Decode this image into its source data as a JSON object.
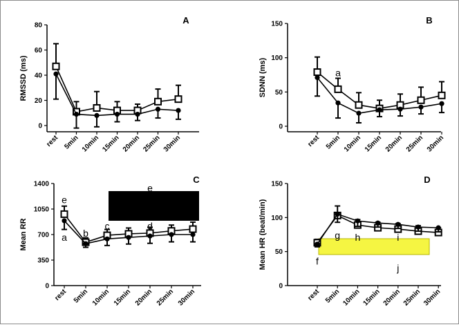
{
  "chart_data": [
    {
      "type": "line",
      "panel_label": "A",
      "ylabel": "RMSSD (ms)",
      "categories": [
        "rest",
        "5min",
        "10min",
        "15min",
        "20min",
        "25min",
        "30min"
      ],
      "ylim": [
        0,
        80
      ],
      "yticks": [
        0,
        20,
        40,
        60,
        80
      ],
      "series": [
        {
          "marker": "open-square",
          "values": [
            47,
            11,
            14,
            12,
            12,
            19,
            21
          ],
          "error": [
            18,
            8,
            13,
            7,
            5,
            10,
            11
          ]
        },
        {
          "marker": "filled-circle",
          "values": [
            41,
            9,
            8,
            9,
            9,
            13,
            12
          ],
          "error": [
            20,
            11,
            9,
            6,
            5,
            7,
            7
          ]
        }
      ],
      "annotations": []
    },
    {
      "type": "line",
      "panel_label": "B",
      "ylabel": "SDNN (ms)",
      "categories": [
        "rest",
        "5min",
        "10min",
        "15min",
        "20min",
        "25min",
        "30min"
      ],
      "ylim": [
        0,
        150
      ],
      "yticks": [
        0,
        50,
        100,
        150
      ],
      "series": [
        {
          "marker": "open-square",
          "values": [
            79,
            54,
            31,
            26,
            31,
            38,
            45
          ],
          "error": [
            22,
            16,
            18,
            12,
            16,
            19,
            20
          ]
        },
        {
          "marker": "filled-circle",
          "values": [
            71,
            34,
            19,
            24,
            25,
            28,
            33
          ],
          "error": [
            27,
            22,
            14,
            10,
            10,
            10,
            13
          ]
        }
      ],
      "annotations": [
        {
          "text": "a",
          "x": "5min",
          "y": 78
        }
      ]
    },
    {
      "type": "line",
      "panel_label": "C",
      "ylabel": "Mean RR",
      "categories": [
        "rest",
        "5min",
        "10min",
        "15min",
        "20min",
        "25min",
        "30min"
      ],
      "ylim": [
        0,
        1400
      ],
      "yticks": [
        0,
        350,
        700,
        1050,
        1400
      ],
      "series": [
        {
          "marker": "open-square",
          "values": [
            980,
            595,
            690,
            710,
            720,
            750,
            775
          ],
          "error": [
            110,
            60,
            80,
            80,
            80,
            80,
            95
          ]
        },
        {
          "marker": "filled-circle",
          "values": [
            890,
            575,
            640,
            660,
            680,
            700,
            700
          ],
          "error": [
            120,
            50,
            90,
            90,
            100,
            100,
            100
          ]
        }
      ],
      "annotations": [
        {
          "text": "e",
          "x": "rest",
          "y": 1180
        },
        {
          "text": "a",
          "x": "rest",
          "y": 660
        },
        {
          "text": "b",
          "x": "5min",
          "y": 720
        },
        {
          "text": "c",
          "x": "10min",
          "y": 820
        },
        {
          "text": "d",
          "x": "20min",
          "y": 820
        },
        {
          "text": "e",
          "x": "20min",
          "y": 1340
        }
      ]
    },
    {
      "type": "line",
      "panel_label": "D",
      "ylabel": "Mean HR (beat/min)",
      "categories": [
        "rest",
        "5min",
        "10min",
        "15min",
        "20min",
        "25min",
        "30min"
      ],
      "ylim": [
        0,
        150
      ],
      "yticks": [
        0,
        50,
        100,
        150
      ],
      "series": [
        {
          "marker": "open-square",
          "values": [
            63,
            103,
            89,
            85,
            83,
            80,
            78
          ],
          "error": [
            5,
            14,
            8,
            8,
            8,
            8,
            7
          ]
        },
        {
          "marker": "filled-circle",
          "values": [
            61,
            105,
            95,
            92,
            90,
            86,
            85
          ],
          "error": [
            4,
            12,
            8,
            6,
            6,
            6,
            6
          ]
        }
      ],
      "annotations": [
        {
          "text": "f",
          "x": "rest",
          "y": 36
        },
        {
          "text": "g",
          "x": "5min",
          "y": 74
        },
        {
          "text": "h",
          "x": "10min",
          "y": 71
        },
        {
          "text": "i",
          "x": "20min",
          "y": 71
        },
        {
          "text": "j",
          "x": "20min",
          "y": 26
        }
      ]
    }
  ],
  "overlays": {
    "C": {
      "color": "#000000"
    },
    "D": {
      "color": "#f5f542",
      "border": "#b5b500"
    }
  }
}
